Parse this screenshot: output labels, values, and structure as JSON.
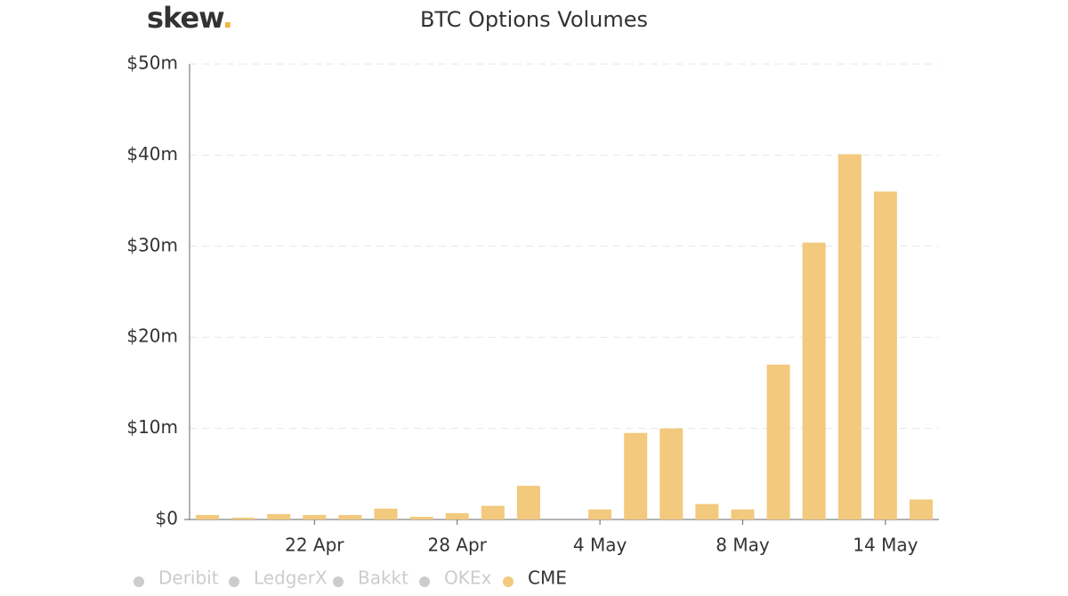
{
  "chart_data": {
    "type": "bar",
    "logo": "skew",
    "logo_dot": ".",
    "title": "BTC Options Volumes",
    "categories": [
      null,
      null,
      null,
      "22 Apr",
      null,
      null,
      null,
      "28 Apr",
      null,
      null,
      null,
      "4 May",
      null,
      null,
      null,
      "8 May",
      null,
      null,
      null,
      "14 May",
      null
    ],
    "series": [
      {
        "name": "CME",
        "color": "#f2c97d",
        "values": [
          0.5,
          0.2,
          0.6,
          0.5,
          0.5,
          1.2,
          0.3,
          0.7,
          1.5,
          3.7,
          0,
          1.1,
          9.5,
          10,
          1.7,
          1.1,
          17,
          30.4,
          40.1,
          36,
          2.2
        ]
      }
    ],
    "legend": [
      {
        "name": "Deribit",
        "active": false
      },
      {
        "name": "LedgerX",
        "active": false
      },
      {
        "name": "Bakkt",
        "active": false
      },
      {
        "name": "OKEx",
        "active": false
      },
      {
        "name": "CME",
        "active": true
      }
    ],
    "ylim": [
      0,
      50
    ],
    "yticks": [
      {
        "value": 0,
        "label": "$0"
      },
      {
        "value": 10,
        "label": "$10m"
      },
      {
        "value": 20,
        "label": "$20m"
      },
      {
        "value": 30,
        "label": "$30m"
      },
      {
        "value": 40,
        "label": "$40m"
      },
      {
        "value": 50,
        "label": "$50m"
      }
    ],
    "grid": true
  }
}
